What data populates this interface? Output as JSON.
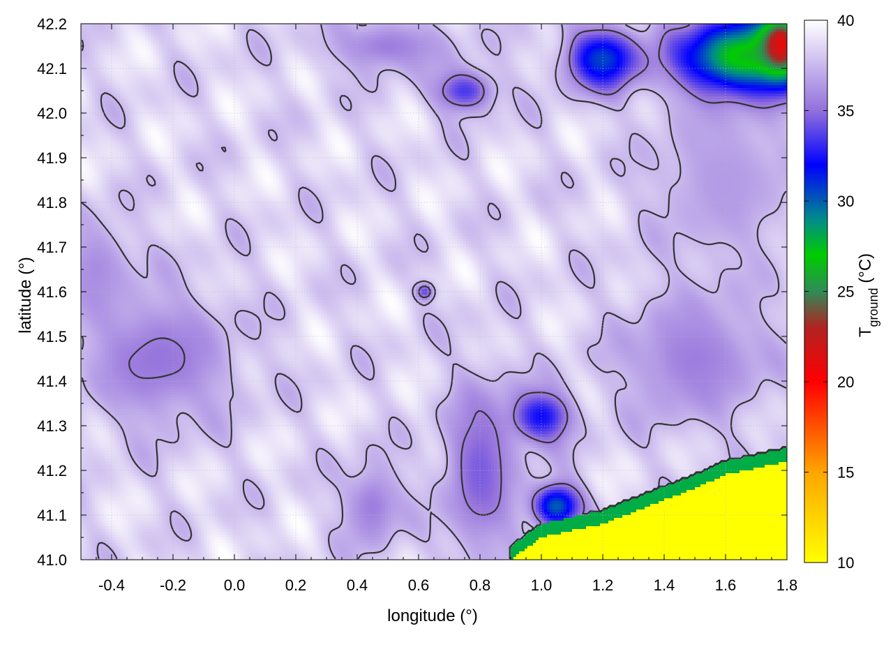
{
  "chart_data": {
    "type": "heatmap",
    "title": "",
    "xlabel": "longitude (°)",
    "ylabel": "latitude (°)",
    "colorbar_label_main": "T",
    "colorbar_label_sub": "ground",
    "colorbar_label_unit": " (°C)",
    "xlim": [
      -0.5,
      1.8
    ],
    "ylim": [
      41.0,
      42.2
    ],
    "x_ticks": [
      -0.4,
      -0.2,
      0.0,
      0.2,
      0.4,
      0.6,
      0.8,
      1.0,
      1.2,
      1.4,
      1.6,
      1.8
    ],
    "x_tick_labels": [
      "-0.4",
      "-0.2",
      "0.0",
      "0.2",
      "0.4",
      "0.6",
      "0.8",
      "1.0",
      "1.2",
      "1.4",
      "1.6",
      "1.8"
    ],
    "y_ticks": [
      41.0,
      41.1,
      41.2,
      41.3,
      41.4,
      41.5,
      41.6,
      41.7,
      41.8,
      41.9,
      42.0,
      42.1,
      42.2
    ],
    "y_tick_labels": [
      "41.0",
      "41.1",
      "41.2",
      "41.3",
      "41.4",
      "41.5",
      "41.6",
      "41.7",
      "41.8",
      "41.9",
      "42.0",
      "42.1",
      "42.2"
    ],
    "colorbar_range": [
      10,
      40
    ],
    "colorbar_ticks": [
      10,
      15,
      20,
      25,
      30,
      35,
      40
    ],
    "colorbar_tick_labels": [
      "10",
      "15",
      "20",
      "25",
      "30",
      "35",
      "40"
    ],
    "colormap": [
      {
        "value": 10,
        "color": "#ffff00"
      },
      {
        "value": 15,
        "color": "#ffa500"
      },
      {
        "value": 20,
        "color": "#ff0000"
      },
      {
        "value": 23,
        "color": "#b22222"
      },
      {
        "value": 25,
        "color": "#2e8b57"
      },
      {
        "value": 27,
        "color": "#00cc00"
      },
      {
        "value": 29,
        "color": "#008b8b"
      },
      {
        "value": 32,
        "color": "#0000ff"
      },
      {
        "value": 35,
        "color": "#9370db"
      },
      {
        "value": 40,
        "color": "#ffffff"
      }
    ],
    "grid": true,
    "contours": true,
    "field": {
      "background_value": 38.5,
      "features": [
        {
          "lon": -0.25,
          "lat": 41.45,
          "value": 35.2,
          "r_lon": 0.25,
          "r_lat": 0.15
        },
        {
          "lon": -0.45,
          "lat": 41.65,
          "value": 36.0,
          "r_lon": 0.12,
          "r_lat": 0.12
        },
        {
          "lon": 0.45,
          "lat": 41.12,
          "value": 35.5,
          "r_lon": 0.1,
          "r_lat": 0.1
        },
        {
          "lon": 0.8,
          "lat": 41.2,
          "value": 34.5,
          "r_lon": 0.12,
          "r_lat": 0.2
        },
        {
          "lon": 1.0,
          "lat": 41.32,
          "value": 32.2,
          "r_lon": 0.1,
          "r_lat": 0.06
        },
        {
          "lon": 0.75,
          "lat": 42.05,
          "value": 33.5,
          "r_lon": 0.1,
          "r_lat": 0.05
        },
        {
          "lon": 0.5,
          "lat": 42.15,
          "value": 35.5,
          "r_lon": 0.2,
          "r_lat": 0.06
        },
        {
          "lon": 1.2,
          "lat": 42.12,
          "value": 30.5,
          "r_lon": 0.12,
          "r_lat": 0.07
        },
        {
          "lon": 1.65,
          "lat": 42.12,
          "value": 25.0,
          "r_lon": 0.2,
          "r_lat": 0.09
        },
        {
          "lon": 1.78,
          "lat": 42.15,
          "value": 20.0,
          "r_lon": 0.07,
          "r_lat": 0.07
        },
        {
          "lon": 1.5,
          "lat": 41.45,
          "value": 35.5,
          "r_lon": 0.25,
          "r_lat": 0.15
        },
        {
          "lon": 1.6,
          "lat": 41.85,
          "value": 36.5,
          "r_lon": 0.25,
          "r_lat": 0.2
        },
        {
          "lon": 1.05,
          "lat": 41.12,
          "value": 30.0,
          "r_lon": 0.08,
          "r_lat": 0.05
        },
        {
          "lon": 0.62,
          "lat": 41.6,
          "value": 34.0,
          "r_lon": 0.03,
          "r_lat": 0.02
        }
      ],
      "sea_value": 10,
      "sea_boundary": [
        {
          "lon": 0.9,
          "lat": 41.0
        },
        {
          "lon": 1.0,
          "lat": 41.05
        },
        {
          "lon": 1.2,
          "lat": 41.08
        },
        {
          "lon": 1.35,
          "lat": 41.12
        },
        {
          "lon": 1.5,
          "lat": 41.16
        },
        {
          "lon": 1.6,
          "lat": 41.19
        },
        {
          "lon": 1.8,
          "lat": 41.22
        }
      ]
    },
    "contour_levels": [
      35.5,
      37.5
    ]
  }
}
